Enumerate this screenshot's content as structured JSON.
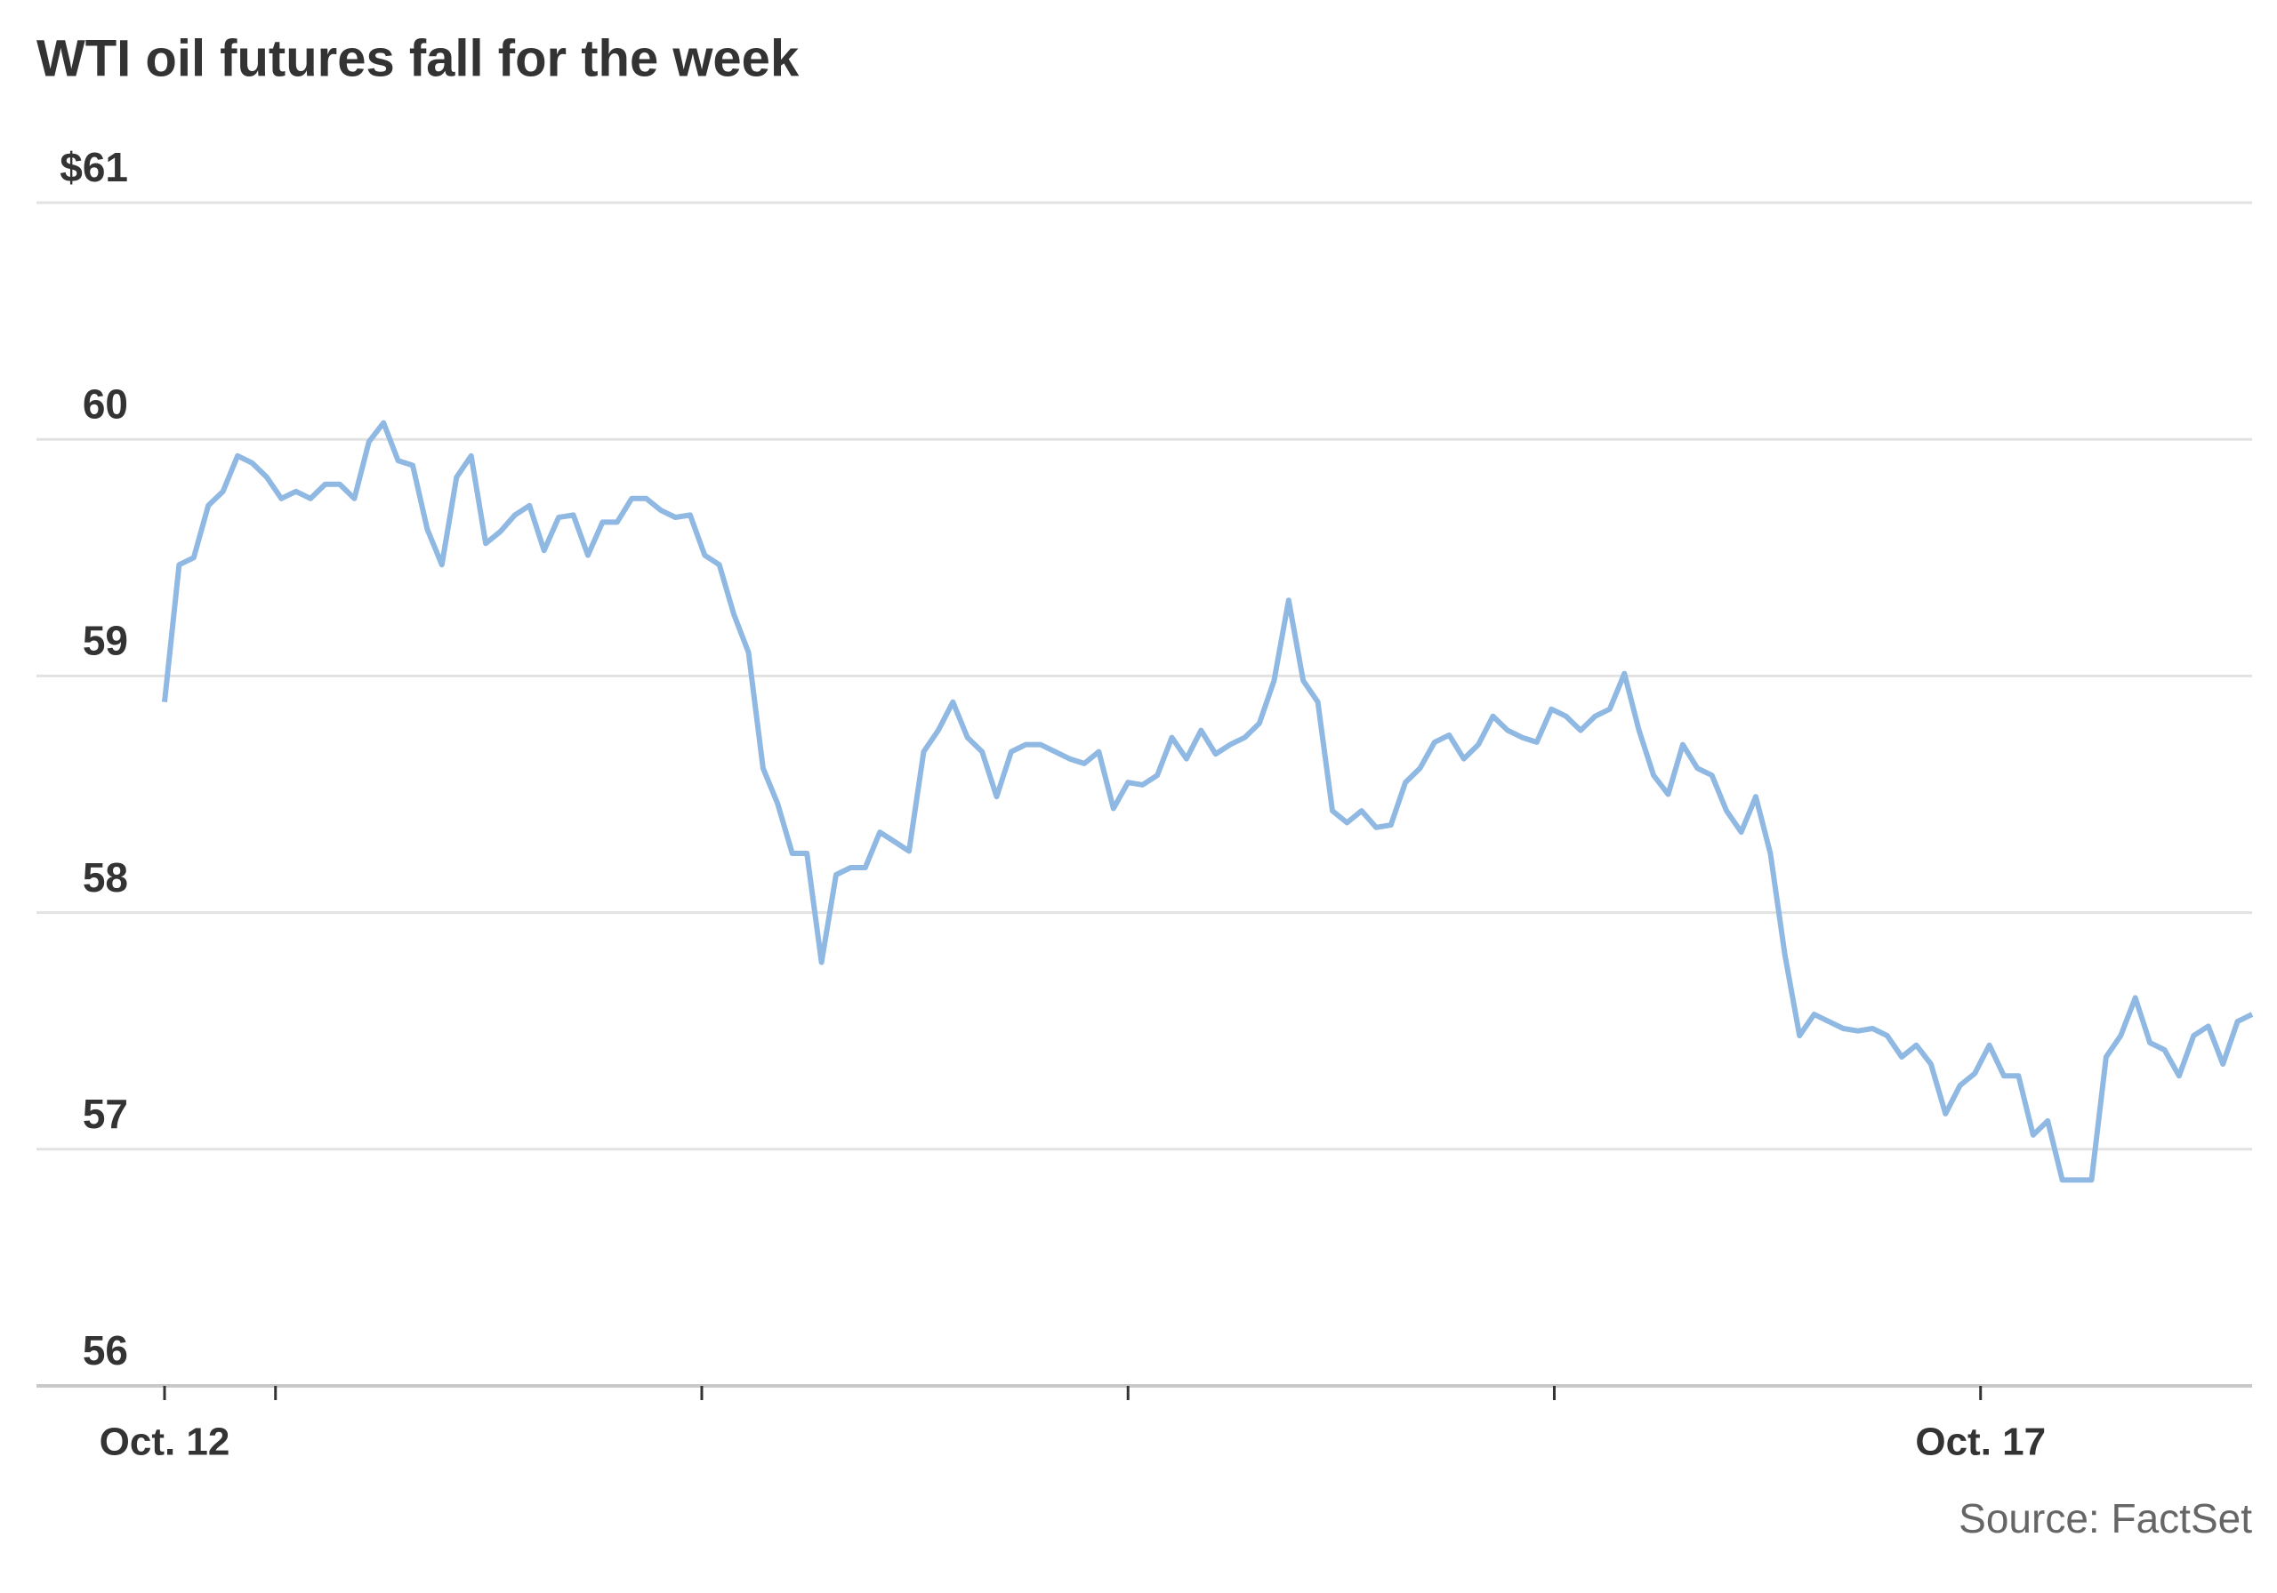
{
  "chart_data": {
    "type": "line",
    "title": "WTI oil futures fall for the week",
    "source": "Source: FactSet",
    "color": "#8fb8e2",
    "grid": true,
    "ylim": [
      56,
      61
    ],
    "yticks": [
      56,
      57,
      58,
      59,
      60,
      {
        "value": 61,
        "label": "$61"
      }
    ],
    "xlim": [
      0,
      143
    ],
    "xticks": [
      {
        "value": 0,
        "label": "Oct. 12"
      },
      {
        "value": 124.4,
        "label": "Oct. 17"
      }
    ],
    "xminor_ticks": [
      7.6,
      36.8,
      66,
      95.2
    ],
    "values": [
      58.89,
      59.47,
      59.5,
      59.72,
      59.78,
      59.93,
      59.9,
      59.84,
      59.75,
      59.78,
      59.75,
      59.81,
      59.81,
      59.75,
      59.99,
      60.07,
      59.91,
      59.89,
      59.62,
      59.47,
      59.84,
      59.93,
      59.56,
      59.61,
      59.68,
      59.72,
      59.53,
      59.67,
      59.68,
      59.51,
      59.65,
      59.65,
      59.75,
      59.75,
      59.7,
      59.67,
      59.68,
      59.51,
      59.47,
      59.26,
      59.1,
      58.61,
      58.46,
      58.25,
      58.25,
      57.79,
      58.16,
      58.19,
      58.19,
      58.34,
      58.3,
      58.26,
      58.68,
      58.77,
      58.89,
      58.74,
      58.68,
      58.49,
      58.68,
      58.71,
      58.71,
      58.68,
      58.65,
      58.63,
      58.68,
      58.44,
      58.55,
      58.54,
      58.58,
      58.74,
      58.65,
      58.77,
      58.67,
      58.71,
      58.74,
      58.8,
      58.98,
      59.32,
      58.98,
      58.89,
      58.43,
      58.38,
      58.43,
      58.36,
      58.37,
      58.55,
      58.61,
      58.72,
      58.75,
      58.65,
      58.71,
      58.83,
      58.77,
      58.74,
      58.72,
      58.86,
      58.83,
      58.77,
      58.83,
      58.86,
      59.01,
      58.77,
      58.58,
      58.5,
      58.71,
      58.61,
      58.58,
      58.43,
      58.34,
      58.49,
      58.25,
      57.82,
      57.48,
      57.57,
      57.54,
      57.51,
      57.5,
      57.51,
      57.48,
      57.39,
      57.44,
      57.36,
      57.15,
      57.27,
      57.32,
      57.44,
      57.31,
      57.31,
      57.06,
      57.12,
      56.87,
      56.87,
      56.87,
      57.39,
      57.48,
      57.64,
      57.45,
      57.42,
      57.31,
      57.48,
      57.52,
      57.36,
      57.54,
      57.57
    ]
  }
}
